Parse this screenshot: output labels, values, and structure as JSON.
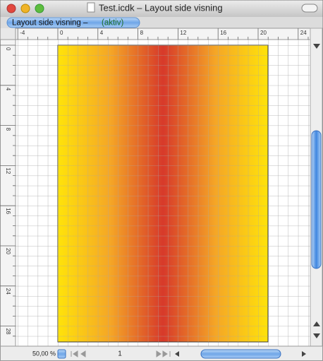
{
  "window": {
    "title": "Test.icdk – Layout side visning"
  },
  "tab": {
    "label": "Layout side visning –",
    "status": "(aktiv)"
  },
  "rulers": {
    "horizontal": [
      -4,
      0,
      4,
      8,
      12,
      16,
      20,
      24
    ],
    "vertical": [
      0,
      4,
      8,
      12,
      16,
      20,
      24,
      28
    ]
  },
  "status": {
    "zoom": "50,00 %",
    "page": "1"
  }
}
